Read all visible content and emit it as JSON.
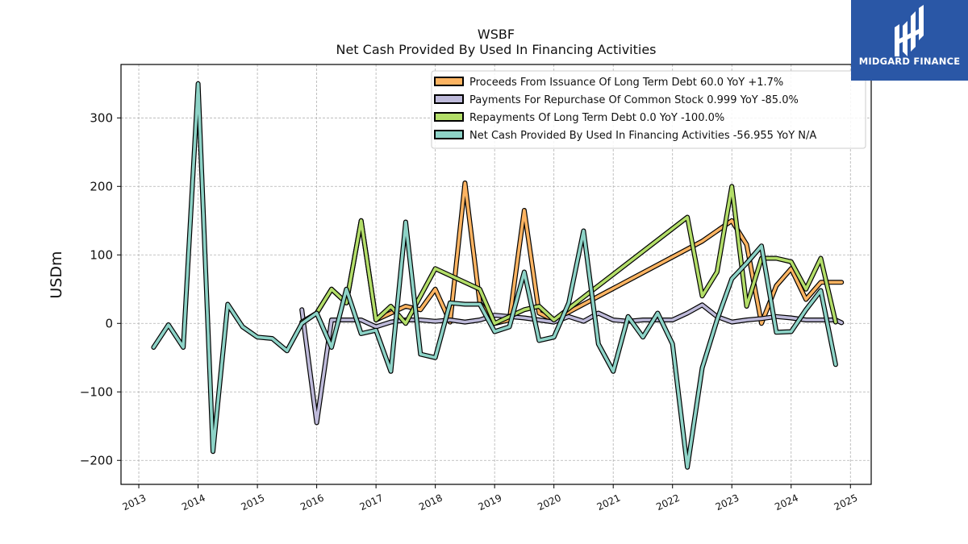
{
  "title": "WSBF",
  "subtitle": "Net Cash Provided By Used In Financing Activities",
  "logo": {
    "text": "MIDGARD FINANCE",
    "background": "#2a57a6"
  },
  "chart_data": {
    "type": "line",
    "title": "WSBF",
    "subtitle": "Net Cash Provided By Used In Financing Activities",
    "xlabel": "",
    "ylabel": "USDm",
    "xlim": [
      2012.7,
      2025.35
    ],
    "ylim": [
      -235,
      378
    ],
    "x_ticks": [
      2013,
      2014,
      2015,
      2016,
      2017,
      2018,
      2019,
      2020,
      2021,
      2022,
      2023,
      2024,
      2025
    ],
    "y_ticks": [
      -200,
      -100,
      0,
      100,
      200,
      300
    ],
    "y_tick_labels": [
      "−200",
      "−100",
      "0",
      "100",
      "200",
      "300"
    ],
    "grid": true,
    "legend_position": "top-right",
    "series": [
      {
        "name": "Proceeds From Issuance Of Long Term Debt",
        "legend": "Proceeds From Issuance Of Long Term Debt  60.0 YoY +1.7%",
        "color": "#fdb462",
        "points": [
          [
            2016.0,
            15
          ],
          [
            2016.25,
            50
          ],
          [
            2016.5,
            30
          ],
          [
            2016.75,
            150
          ],
          [
            2017.0,
            5
          ],
          [
            2017.25,
            15
          ],
          [
            2017.5,
            25
          ],
          [
            2017.75,
            20
          ],
          [
            2018.0,
            50
          ],
          [
            2018.25,
            2
          ],
          [
            2018.5,
            205
          ],
          [
            2018.75,
            30
          ],
          [
            2019.0,
            0
          ],
          [
            2019.25,
            5
          ],
          [
            2019.5,
            165
          ],
          [
            2019.75,
            15
          ],
          [
            2020.0,
            5
          ],
          [
            2022.5,
            120
          ],
          [
            2023.0,
            150
          ],
          [
            2023.25,
            115
          ],
          [
            2023.5,
            0
          ],
          [
            2023.75,
            55
          ],
          [
            2024.0,
            80
          ],
          [
            2024.25,
            35
          ],
          [
            2024.5,
            60
          ],
          [
            2024.75,
            60
          ],
          [
            2024.85,
            60
          ]
        ]
      },
      {
        "name": "Payments For Repurchase Of Common Stock",
        "legend": "Payments For Repurchase Of Common Stock  0.999 YoY -85.0%",
        "color": "#bebada",
        "points": [
          [
            2015.75,
            20
          ],
          [
            2016.0,
            -145
          ],
          [
            2016.25,
            5
          ],
          [
            2016.5,
            5
          ],
          [
            2016.75,
            5
          ],
          [
            2017.0,
            -5
          ],
          [
            2017.25,
            2
          ],
          [
            2017.5,
            5
          ],
          [
            2017.75,
            5
          ],
          [
            2018.0,
            3
          ],
          [
            2018.25,
            5
          ],
          [
            2018.5,
            2
          ],
          [
            2018.75,
            5
          ],
          [
            2019.0,
            12
          ],
          [
            2019.25,
            10
          ],
          [
            2019.5,
            8
          ],
          [
            2019.75,
            5
          ],
          [
            2020.0,
            2
          ],
          [
            2020.25,
            10
          ],
          [
            2020.5,
            3
          ],
          [
            2020.75,
            15
          ],
          [
            2021.0,
            5
          ],
          [
            2021.25,
            3
          ],
          [
            2021.5,
            5
          ],
          [
            2021.75,
            5
          ],
          [
            2022.0,
            5
          ],
          [
            2022.25,
            15
          ],
          [
            2022.5,
            27
          ],
          [
            2022.75,
            10
          ],
          [
            2023.0,
            2
          ],
          [
            2023.25,
            5
          ],
          [
            2023.5,
            7
          ],
          [
            2023.75,
            10
          ],
          [
            2024.0,
            8
          ],
          [
            2024.25,
            5
          ],
          [
            2024.5,
            5
          ],
          [
            2024.75,
            5
          ],
          [
            2024.85,
            1
          ]
        ]
      },
      {
        "name": "Repayments Of Long Term Debt",
        "legend": "Repayments Of Long Term Debt  0.0 YoY -100.0%",
        "color": "#b3de69",
        "points": [
          [
            2015.75,
            2
          ],
          [
            2016.0,
            15
          ],
          [
            2016.25,
            50
          ],
          [
            2016.5,
            30
          ],
          [
            2016.75,
            150
          ],
          [
            2017.0,
            5
          ],
          [
            2017.25,
            25
          ],
          [
            2017.5,
            0
          ],
          [
            2017.75,
            40
          ],
          [
            2018.0,
            80
          ],
          [
            2018.75,
            50
          ],
          [
            2019.0,
            0
          ],
          [
            2019.5,
            20
          ],
          [
            2019.75,
            25
          ],
          [
            2020.0,
            5
          ],
          [
            2022.25,
            155
          ],
          [
            2022.5,
            40
          ],
          [
            2022.75,
            75
          ],
          [
            2023.0,
            200
          ],
          [
            2023.25,
            25
          ],
          [
            2023.5,
            95
          ],
          [
            2023.75,
            95
          ],
          [
            2024.0,
            90
          ],
          [
            2024.25,
            50
          ],
          [
            2024.5,
            95
          ],
          [
            2024.75,
            2
          ]
        ]
      },
      {
        "name": "Net Cash Provided By Used In Financing Activities",
        "legend": "Net Cash Provided By Used In Financing Activities  -56.955 YoY N/A",
        "color": "#8dd3c7",
        "points": [
          [
            2013.25,
            -35
          ],
          [
            2013.5,
            -2
          ],
          [
            2013.75,
            -35
          ],
          [
            2014.0,
            350
          ],
          [
            2014.25,
            -187
          ],
          [
            2014.5,
            28
          ],
          [
            2014.75,
            -5
          ],
          [
            2015.0,
            -20
          ],
          [
            2015.25,
            -22
          ],
          [
            2015.5,
            -40
          ],
          [
            2015.75,
            0
          ],
          [
            2016.0,
            15
          ],
          [
            2016.25,
            -35
          ],
          [
            2016.5,
            50
          ],
          [
            2016.75,
            -15
          ],
          [
            2017.0,
            -10
          ],
          [
            2017.25,
            -70
          ],
          [
            2017.5,
            148
          ],
          [
            2017.75,
            -45
          ],
          [
            2018.0,
            -50
          ],
          [
            2018.25,
            30
          ],
          [
            2018.5,
            28
          ],
          [
            2018.75,
            28
          ],
          [
            2019.0,
            -12
          ],
          [
            2019.25,
            -5
          ],
          [
            2019.5,
            75
          ],
          [
            2019.75,
            -25
          ],
          [
            2020.0,
            -20
          ],
          [
            2020.25,
            30
          ],
          [
            2020.5,
            135
          ],
          [
            2020.75,
            -30
          ],
          [
            2021.0,
            -70
          ],
          [
            2021.25,
            10
          ],
          [
            2021.5,
            -20
          ],
          [
            2021.75,
            15
          ],
          [
            2022.0,
            -30
          ],
          [
            2022.25,
            -210
          ],
          [
            2022.5,
            -65
          ],
          [
            2022.75,
            5
          ],
          [
            2023.0,
            65
          ],
          [
            2023.25,
            88
          ],
          [
            2023.5,
            113
          ],
          [
            2023.75,
            -13
          ],
          [
            2024.0,
            -12
          ],
          [
            2024.25,
            20
          ],
          [
            2024.5,
            48
          ],
          [
            2024.75,
            -60
          ]
        ]
      }
    ]
  }
}
